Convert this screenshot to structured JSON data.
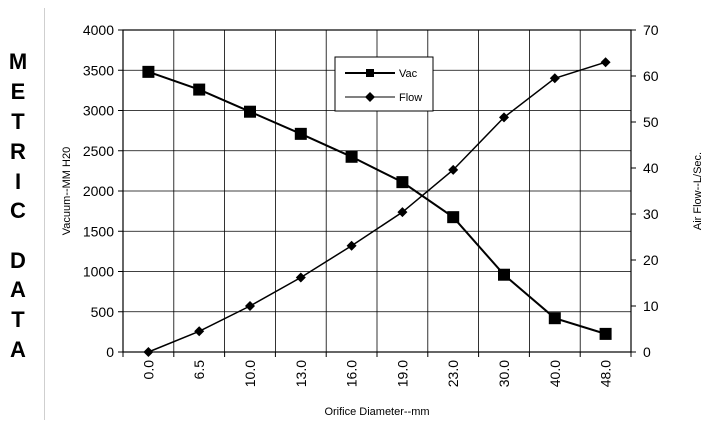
{
  "side_label": [
    "M",
    "E",
    "T",
    "R",
    "I",
    "C",
    "",
    "D",
    "A",
    "T",
    "A"
  ],
  "chart_data": {
    "type": "line",
    "title": "",
    "xlabel": "Orifice Diameter--mm",
    "ylabel": "Vacuum--MM H20",
    "y2label": "Air Flow--L/Sec.",
    "categories": [
      "0.0",
      "6.5",
      "10.0",
      "13.0",
      "16.0",
      "19.0",
      "23.0",
      "30.0",
      "40.0",
      "48.0"
    ],
    "ylim": [
      0,
      4000
    ],
    "yticks": [
      "0",
      "500",
      "1000",
      "1500",
      "2000",
      "2500",
      "3000",
      "3500",
      "4000"
    ],
    "y2lim": [
      0,
      70
    ],
    "y2ticks": [
      "0",
      "10",
      "20",
      "30",
      "40",
      "50",
      "60",
      "70"
    ],
    "grid": true,
    "legend_position": "top-center",
    "series": [
      {
        "name": "Vac",
        "axis": "left",
        "marker": "square",
        "values": [
          3480,
          3260,
          2985,
          2710,
          2425,
          2110,
          1675,
          960,
          420,
          225
        ]
      },
      {
        "name": "Flow",
        "axis": "right",
        "marker": "diamond",
        "values": [
          0,
          4.5,
          10,
          16.2,
          23.1,
          30.4,
          39.6,
          51,
          59.5,
          63
        ]
      }
    ],
    "colors": {
      "line": "#000000",
      "grid": "#000000",
      "background": "#ffffff"
    }
  }
}
